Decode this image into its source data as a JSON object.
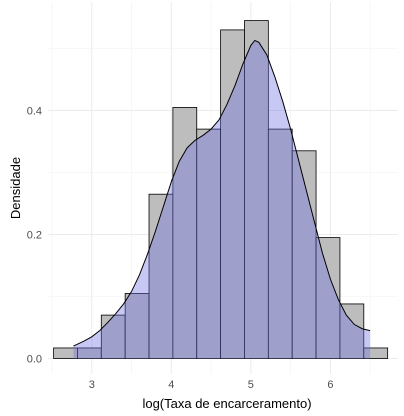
{
  "chart_data": {
    "type": "histogram",
    "title": "",
    "xlabel": "log(Taxa de encarceramento)",
    "ylabel": "Densidade",
    "xlim": [
      2.45,
      6.85
    ],
    "ylim": [
      -0.025,
      0.575
    ],
    "x_ticks": [
      3,
      4,
      5,
      6
    ],
    "x_tick_labels": [
      "3",
      "4",
      "5",
      "6"
    ],
    "y_ticks": [
      0.0,
      0.2,
      0.4
    ],
    "y_tick_labels": [
      "0.0",
      "0.2",
      "0.4"
    ],
    "grid": true,
    "bin_width": 0.3,
    "bin_edges": [
      2.52,
      2.82,
      3.12,
      3.42,
      3.72,
      4.02,
      4.32,
      4.62,
      4.92,
      5.22,
      5.52,
      5.82,
      6.12,
      6.42,
      6.72
    ],
    "series": [
      {
        "kind": "histogram",
        "fill": "#bdbdbd",
        "stroke": "#000000",
        "values": [
          0.017,
          0.017,
          0.07,
          0.105,
          0.265,
          0.405,
          0.37,
          0.53,
          0.545,
          0.37,
          0.335,
          0.195,
          0.088,
          0.017
        ]
      },
      {
        "kind": "density",
        "fill": "#6f6fe6",
        "fill_opacity": 0.38,
        "stroke": "#000000",
        "x": [
          2.77,
          2.9,
          3.0,
          3.1,
          3.2,
          3.3,
          3.4,
          3.5,
          3.6,
          3.7,
          3.8,
          3.9,
          4.0,
          4.1,
          4.2,
          4.3,
          4.4,
          4.5,
          4.6,
          4.7,
          4.8,
          4.9,
          5.0,
          5.05,
          5.1,
          5.2,
          5.3,
          5.4,
          5.5,
          5.6,
          5.7,
          5.8,
          5.9,
          6.0,
          6.1,
          6.2,
          6.3,
          6.4,
          6.5
        ],
        "y": [
          0.02,
          0.028,
          0.035,
          0.045,
          0.058,
          0.072,
          0.088,
          0.108,
          0.135,
          0.168,
          0.205,
          0.245,
          0.285,
          0.318,
          0.34,
          0.352,
          0.36,
          0.37,
          0.385,
          0.41,
          0.44,
          0.475,
          0.505,
          0.513,
          0.51,
          0.49,
          0.455,
          0.415,
          0.37,
          0.32,
          0.27,
          0.22,
          0.17,
          0.128,
          0.095,
          0.07,
          0.055,
          0.048,
          0.045
        ]
      }
    ]
  }
}
